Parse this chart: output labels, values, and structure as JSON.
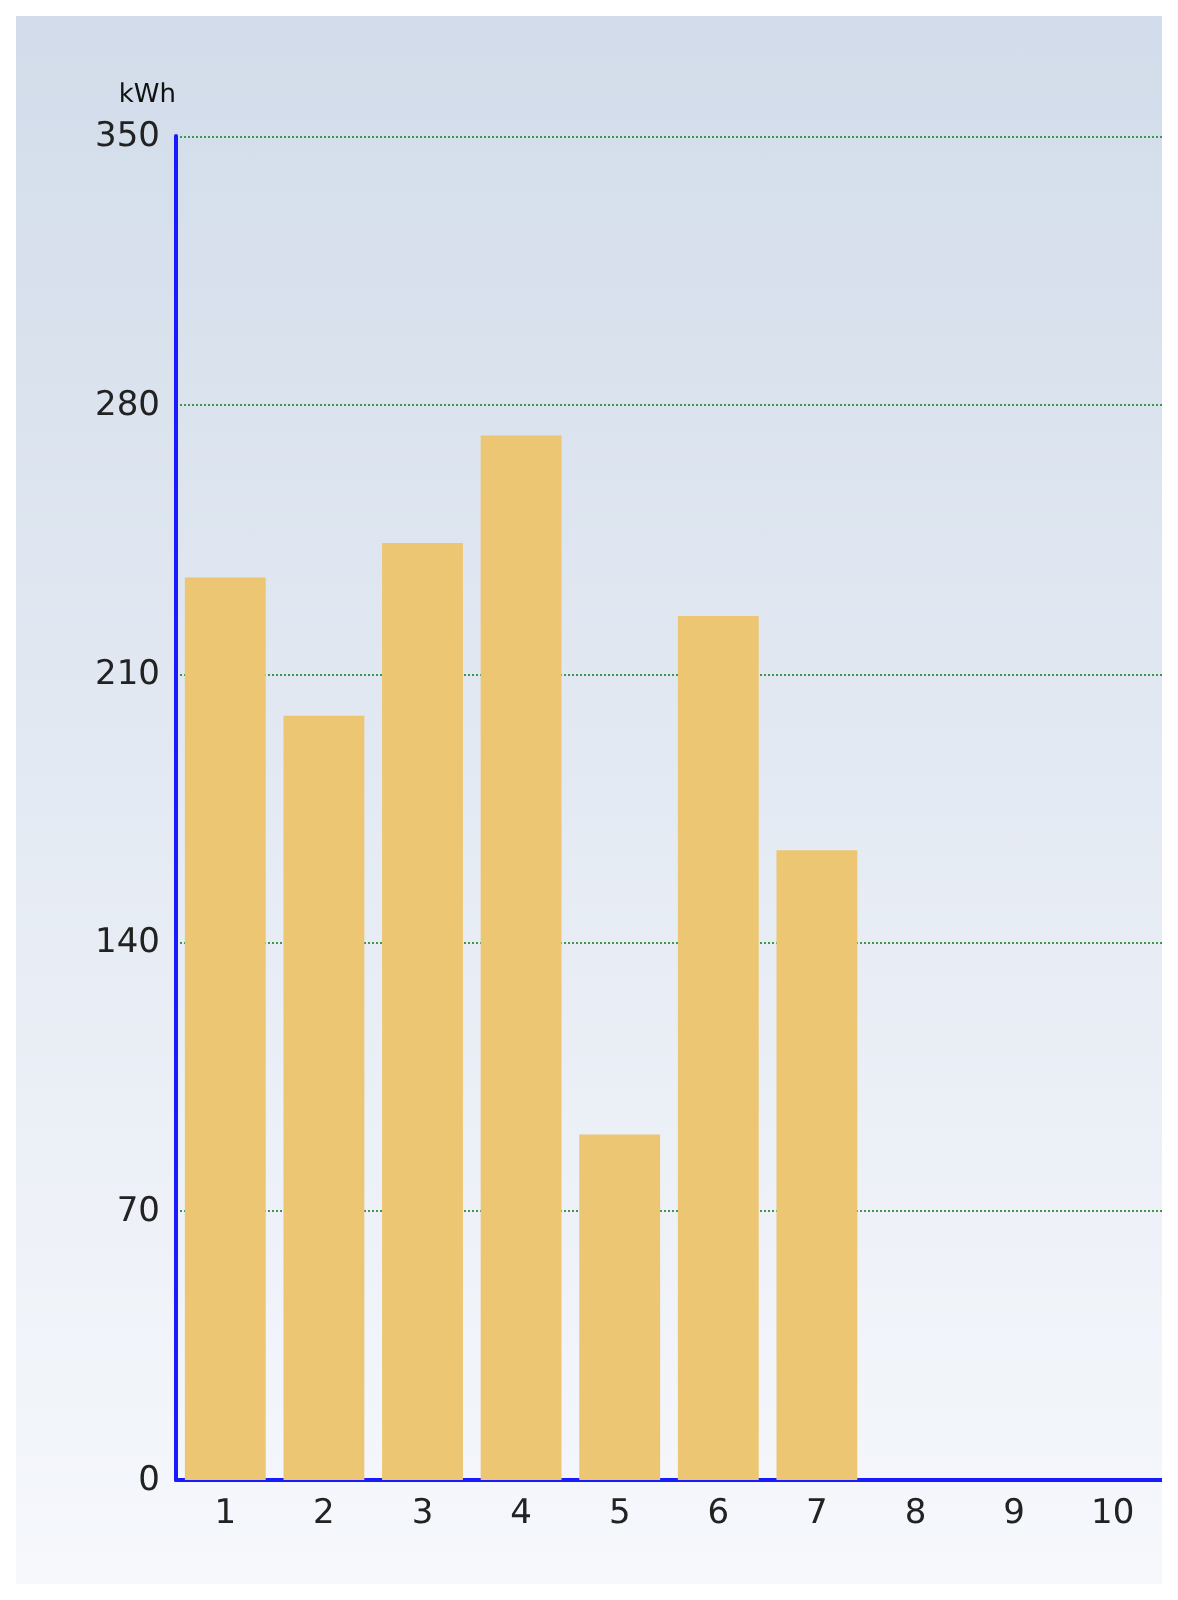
{
  "chart_data": {
    "type": "bar",
    "ylabel": "kWh",
    "categories": [
      "1",
      "2",
      "3",
      "4",
      "5",
      "6",
      "7",
      "8",
      "9",
      "10"
    ],
    "values": [
      235,
      199,
      244,
      272,
      90,
      225,
      164,
      null,
      null,
      null
    ],
    "color": "#ecc673",
    "ylim": [
      0,
      350
    ],
    "yticks": [
      0,
      70,
      140,
      210,
      280,
      350
    ],
    "grid": "y"
  }
}
